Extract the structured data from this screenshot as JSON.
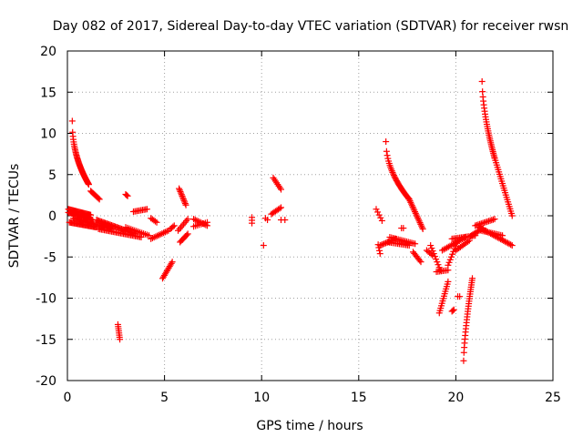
{
  "chart_data": {
    "type": "scatter",
    "title": "Day 082 of 2017, Sidereal Day-to-day VTEC variation (SDTVAR) for receiver rwsn",
    "xlabel": "GPS time / hours",
    "ylabel": "SDTVAR / TECUs",
    "xlim": [
      0,
      25
    ],
    "ylim": [
      -20,
      20
    ],
    "xticks": [
      0,
      5,
      10,
      15,
      20,
      25
    ],
    "yticks": [
      -20,
      -15,
      -10,
      -5,
      0,
      5,
      10,
      15,
      20
    ],
    "grid": true,
    "marker": "+",
    "series_color": "#ff0000",
    "segments": [
      {
        "x0": 0.25,
        "x1": 1.1,
        "y0": 11.5,
        "y1": 3.8,
        "curve": 0.45,
        "n": 48
      },
      {
        "x0": 1.2,
        "x1": 1.65,
        "y0": 3.0,
        "y1": 2.0,
        "curve": 1.0,
        "n": 10
      },
      {
        "x0": 0.05,
        "x1": 1.2,
        "y0": 0.8,
        "y1": 0.1,
        "curve": 1.0,
        "n": 24
      },
      {
        "x0": 0.05,
        "x1": 1.3,
        "y0": 0.4,
        "y1": -0.5,
        "curve": 1.0,
        "n": 24
      },
      {
        "x0": 0.1,
        "x1": 1.5,
        "y0": -0.8,
        "y1": -1.4,
        "curve": 1.0,
        "n": 26
      },
      {
        "x0": 0.3,
        "x1": 2.3,
        "y0": -0.3,
        "y1": -1.6,
        "curve": 1.0,
        "n": 32
      },
      {
        "x0": 1.5,
        "x1": 3.5,
        "y0": -0.5,
        "y1": -2.2,
        "curve": 1.0,
        "n": 32
      },
      {
        "x0": 1.6,
        "x1": 3.8,
        "y0": -1.6,
        "y1": -2.6,
        "curve": 1.0,
        "n": 30
      },
      {
        "x0": 3.0,
        "x1": 4.2,
        "y0": -1.4,
        "y1": -2.4,
        "curve": 1.0,
        "n": 14
      },
      {
        "x0": 2.6,
        "x1": 2.7,
        "y0": -13.2,
        "y1": -15.0,
        "curve": 1.0,
        "n": 8
      },
      {
        "x0": 3.0,
        "x1": 3.1,
        "y0": 2.6,
        "y1": 2.4,
        "curve": 1.0,
        "n": 3
      },
      {
        "x0": 3.4,
        "x1": 4.1,
        "y0": 0.5,
        "y1": 0.8,
        "curve": 1.0,
        "n": 10
      },
      {
        "x0": 4.3,
        "x1": 4.6,
        "y0": -0.3,
        "y1": -0.8,
        "curve": 1.0,
        "n": 5
      },
      {
        "x0": 4.3,
        "x1": 5.2,
        "y0": -2.8,
        "y1": -1.8,
        "curve": 1.0,
        "n": 12
      },
      {
        "x0": 4.9,
        "x1": 5.4,
        "y0": -7.6,
        "y1": -5.6,
        "curve": 1.0,
        "n": 12
      },
      {
        "x0": 5.3,
        "x1": 5.5,
        "y0": -1.6,
        "y1": -1.2,
        "curve": 1.0,
        "n": 4
      },
      {
        "x0": 5.75,
        "x1": 6.1,
        "y0": 3.3,
        "y1": 1.3,
        "curve": 1.0,
        "n": 12
      },
      {
        "x0": 5.7,
        "x1": 6.2,
        "y0": -1.8,
        "y1": -0.4,
        "curve": 1.0,
        "n": 8
      },
      {
        "x0": 5.8,
        "x1": 6.2,
        "y0": -3.2,
        "y1": -2.2,
        "curve": 1.0,
        "n": 8
      },
      {
        "x0": 6.5,
        "x1": 7.2,
        "y0": -0.4,
        "y1": -1.2,
        "curve": 1.0,
        "n": 10
      },
      {
        "x0": 6.5,
        "x1": 7.2,
        "y0": -1.3,
        "y1": -0.8,
        "curve": 1.0,
        "n": 8
      },
      {
        "x0": 9.5,
        "x1": 9.5,
        "y0": -0.2,
        "y1": -0.9,
        "curve": 1.0,
        "n": 3
      },
      {
        "x0": 10.1,
        "x1": 10.2,
        "y0": -3.6,
        "y1": -3.6,
        "curve": 1.0,
        "n": 1
      },
      {
        "x0": 10.2,
        "x1": 10.3,
        "y0": -0.3,
        "y1": -0.5,
        "curve": 1.0,
        "n": 2
      },
      {
        "x0": 10.6,
        "x1": 11.0,
        "y0": 4.6,
        "y1": 3.2,
        "curve": 1.0,
        "n": 8
      },
      {
        "x0": 10.5,
        "x1": 11.0,
        "y0": 0.2,
        "y1": 1.0,
        "curve": 1.0,
        "n": 8
      },
      {
        "x0": 11.0,
        "x1": 11.2,
        "y0": -0.5,
        "y1": -0.5,
        "curve": 1.0,
        "n": 2
      },
      {
        "x0": 15.9,
        "x1": 16.2,
        "y0": 0.8,
        "y1": -0.6,
        "curve": 1.0,
        "n": 5
      },
      {
        "x0": 16.0,
        "x1": 16.1,
        "y0": -3.5,
        "y1": -4.6,
        "curve": 1.0,
        "n": 4
      },
      {
        "x0": 16.1,
        "x1": 16.9,
        "y0": -3.6,
        "y1": -2.8,
        "curve": 1.0,
        "n": 12
      },
      {
        "x0": 16.4,
        "x1": 17.6,
        "y0": 9.0,
        "y1": 2.0,
        "curve": 0.5,
        "n": 36
      },
      {
        "x0": 17.6,
        "x1": 18.3,
        "y0": 2.0,
        "y1": -1.6,
        "curve": 1.0,
        "n": 20
      },
      {
        "x0": 16.5,
        "x1": 17.6,
        "y0": -3.2,
        "y1": -3.6,
        "curve": 1.0,
        "n": 14
      },
      {
        "x0": 16.6,
        "x1": 17.9,
        "y0": -2.6,
        "y1": -3.4,
        "curve": 1.0,
        "n": 16
      },
      {
        "x0": 17.2,
        "x1": 17.3,
        "y0": -1.5,
        "y1": -1.5,
        "curve": 1.0,
        "n": 2
      },
      {
        "x0": 17.8,
        "x1": 18.2,
        "y0": -4.4,
        "y1": -5.6,
        "curve": 1.0,
        "n": 8
      },
      {
        "x0": 18.5,
        "x1": 18.8,
        "y0": -4.2,
        "y1": -4.8,
        "curve": 1.0,
        "n": 5
      },
      {
        "x0": 18.7,
        "x1": 19.2,
        "y0": -3.6,
        "y1": -6.6,
        "curve": 1.0,
        "n": 10
      },
      {
        "x0": 19.0,
        "x1": 19.6,
        "y0": -6.8,
        "y1": -6.6,
        "curve": 1.0,
        "n": 8
      },
      {
        "x0": 19.15,
        "x1": 19.6,
        "y0": -11.8,
        "y1": -8.0,
        "curve": 1.0,
        "n": 14
      },
      {
        "x0": 19.6,
        "x1": 20.1,
        "y0": -6.0,
        "y1": -3.0,
        "curve": 1.0,
        "n": 10
      },
      {
        "x0": 19.8,
        "x1": 19.9,
        "y0": -11.6,
        "y1": -11.4,
        "curve": 1.0,
        "n": 3
      },
      {
        "x0": 19.3,
        "x1": 20.5,
        "y0": -4.2,
        "y1": -2.6,
        "curve": 1.0,
        "n": 16
      },
      {
        "x0": 19.8,
        "x1": 21.0,
        "y0": -2.8,
        "y1": -2.4,
        "curve": 1.0,
        "n": 16
      },
      {
        "x0": 20.0,
        "x1": 20.7,
        "y0": -4.2,
        "y1": -3.0,
        "curve": 1.0,
        "n": 10
      },
      {
        "x0": 20.1,
        "x1": 20.2,
        "y0": -9.8,
        "y1": -9.8,
        "curve": 1.0,
        "n": 2
      },
      {
        "x0": 20.4,
        "x1": 20.85,
        "y0": -17.6,
        "y1": -7.6,
        "curve": 0.7,
        "n": 28
      },
      {
        "x0": 20.8,
        "x1": 21.4,
        "y0": -2.4,
        "y1": -1.5,
        "curve": 1.0,
        "n": 10
      },
      {
        "x0": 21.0,
        "x1": 22.0,
        "y0": -1.2,
        "y1": -0.4,
        "curve": 1.0,
        "n": 14
      },
      {
        "x0": 21.2,
        "x1": 22.9,
        "y0": -1.4,
        "y1": -3.6,
        "curve": 1.0,
        "n": 24
      },
      {
        "x0": 21.3,
        "x1": 22.4,
        "y0": -1.8,
        "y1": -2.4,
        "curve": 1.0,
        "n": 14
      },
      {
        "x0": 21.35,
        "x1": 22.0,
        "y0": 16.3,
        "y1": 7.0,
        "curve": 0.6,
        "n": 30
      },
      {
        "x0": 22.0,
        "x1": 22.9,
        "y0": 7.0,
        "y1": 0.0,
        "curve": 1.0,
        "n": 26
      }
    ]
  }
}
